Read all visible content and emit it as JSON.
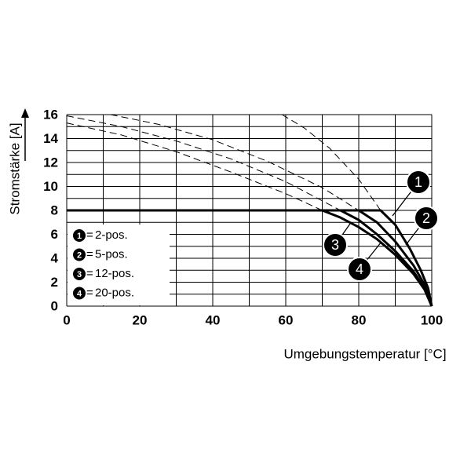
{
  "chart_data": {
    "type": "line",
    "x_label": "Umgebungstemperatur [°C]",
    "y_label": "Stromstärke [A]",
    "xlim": [
      0,
      100
    ],
    "ylim": [
      0,
      16
    ],
    "xticks": [
      0,
      20,
      40,
      60,
      80,
      100
    ],
    "yticks": [
      0,
      2,
      4,
      6,
      8,
      10,
      12,
      14,
      16
    ],
    "xminor": [
      10,
      30,
      50,
      70,
      90
    ],
    "yminor": [
      1,
      3,
      5,
      7,
      9,
      11,
      13,
      15
    ],
    "grid": true,
    "legend_separator": "=",
    "series": [
      {
        "marker": "1",
        "name": "2-pos.",
        "color": "#000000",
        "style": "solid",
        "x": [
          0,
          86,
          90,
          94,
          97,
          99,
          100
        ],
        "values": [
          8,
          8,
          6.8,
          4.8,
          3,
          1.5,
          0
        ]
      },
      {
        "marker": "2",
        "name": "5-pos.",
        "color": "#000000",
        "style": "solid",
        "x": [
          0,
          80,
          85,
          90,
          95,
          98,
          100
        ],
        "values": [
          8,
          8,
          7,
          5.4,
          3.4,
          1.8,
          0
        ]
      },
      {
        "marker": "3",
        "name": "12-pos.",
        "color": "#000000",
        "style": "solid",
        "x": [
          0,
          75,
          80,
          85,
          90,
          95,
          98,
          100
        ],
        "values": [
          8,
          8,
          7.2,
          6,
          4.6,
          2.9,
          1.5,
          0
        ]
      },
      {
        "marker": "4",
        "name": "20-pos.",
        "color": "#000000",
        "style": "solid",
        "x": [
          0,
          70,
          75,
          80,
          85,
          90,
          95,
          98,
          100
        ],
        "values": [
          8,
          8,
          7.4,
          6.6,
          5.6,
          4.3,
          2.7,
          1.4,
          0
        ]
      },
      {
        "color": "#000000",
        "style": "dashed",
        "x": [
          59,
          65,
          72,
          80,
          86
        ],
        "values": [
          16,
          14.9,
          13.2,
          10.6,
          8
        ]
      },
      {
        "color": "#000000",
        "style": "dashed",
        "x": [
          12,
          25,
          40,
          55,
          70,
          80
        ],
        "values": [
          16,
          15.2,
          13.9,
          12.1,
          9.9,
          8
        ]
      },
      {
        "color": "#000000",
        "style": "dashed",
        "x": [
          0,
          15,
          30,
          45,
          60,
          75
        ],
        "values": [
          15.9,
          15,
          13.8,
          12.3,
          10.4,
          8
        ]
      },
      {
        "color": "#000000",
        "style": "dashed",
        "x": [
          0,
          15,
          30,
          45,
          60,
          70
        ],
        "values": [
          15.3,
          14.3,
          12.9,
          11.2,
          9.4,
          8
        ]
      }
    ]
  }
}
